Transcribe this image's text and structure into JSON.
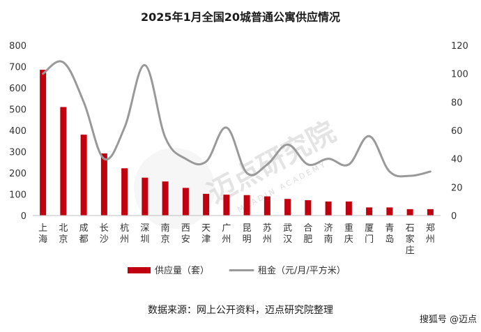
{
  "chart_data": {
    "type": "bar",
    "title": "2025年1月全国20城普通公寓供应情况",
    "categories": [
      "上海",
      "北京",
      "成都",
      "长沙",
      "杭州",
      "深圳",
      "南京",
      "西安",
      "天津",
      "广州",
      "昆明",
      "苏州",
      "武汉",
      "合肥",
      "济南",
      "重庆",
      "厦门",
      "青岛",
      "石家庄",
      "郑州"
    ],
    "series": [
      {
        "name": "供应量（套）",
        "type": "bar",
        "axis": "left",
        "color": "#c0000f",
        "values": [
          685,
          510,
          380,
          292,
          222,
          178,
          160,
          130,
          102,
          98,
          96,
          90,
          78,
          72,
          66,
          66,
          38,
          38,
          30,
          30
        ]
      },
      {
        "name": "租金（元/月/平方米）",
        "type": "line",
        "axis": "right",
        "color": "#999999",
        "values": [
          100,
          108,
          80,
          40,
          62,
          106,
          55,
          40,
          38,
          62,
          30,
          36,
          50,
          36,
          40,
          36,
          56,
          31,
          28,
          31
        ]
      }
    ],
    "y_left": {
      "min": 0,
      "max": 800,
      "step": 100,
      "ticks": [
        "0",
        "100",
        "200",
        "300",
        "400",
        "500",
        "600",
        "700",
        "800"
      ]
    },
    "y_right": {
      "min": 0,
      "max": 120,
      "step": 20,
      "ticks": [
        "0",
        "20",
        "40",
        "60",
        "80",
        "100",
        "120"
      ]
    },
    "grid": false,
    "legend_position": "bottom"
  },
  "source_note": "数据来源：网上公开资料，迈点研究院整理",
  "watermark": {
    "main": "迈点研究院",
    "sub": "MEADIN ACADEMY",
    "corner": "搜狐号 @迈点"
  }
}
